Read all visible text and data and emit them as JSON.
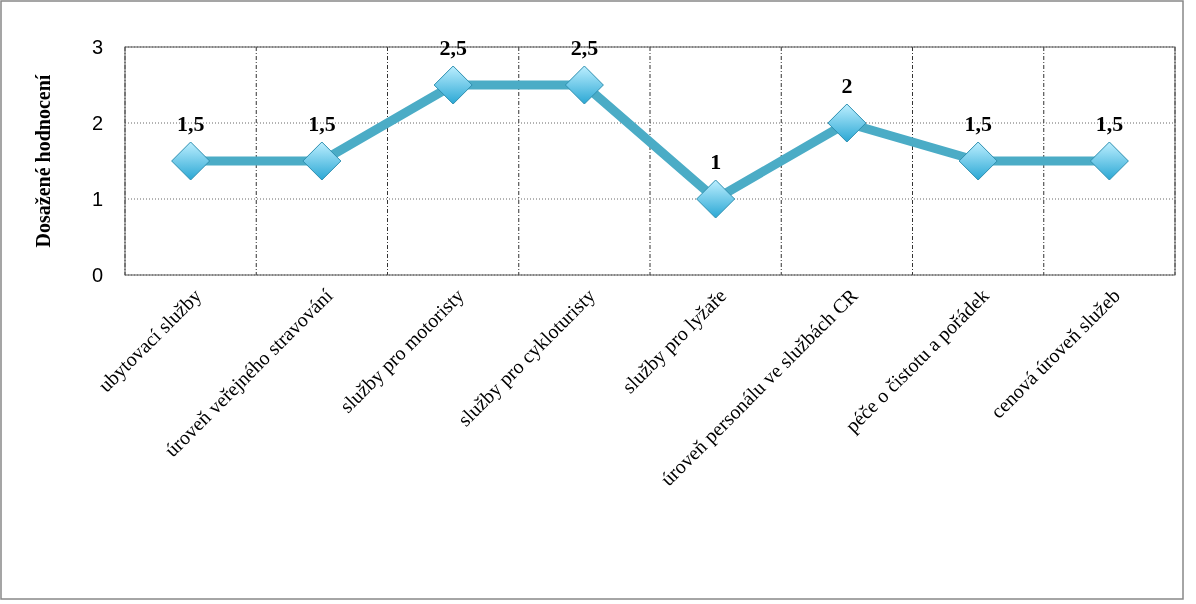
{
  "chart_data": {
    "type": "line",
    "ylabel": "Dosažené hodnocení",
    "categories": [
      "ubytovací  služby",
      "úroveň veřejného stravování",
      "služby pro motoristy",
      "služby pro cykloturisty",
      "služby pro lyžaře",
      "úroveň personálu ve službách CR",
      "péče o čistotu a pořádek",
      "cenová úroveň  služeb"
    ],
    "series": [
      {
        "color": "#4bacc6",
        "values": [
          1.5,
          1.5,
          2.5,
          2.5,
          1,
          2,
          1.5,
          1.5
        ],
        "value_labels": [
          "1,5",
          "1,5",
          "2,5",
          "2,5",
          "1",
          "2",
          "1,5",
          "1,5"
        ]
      }
    ],
    "ylim": [
      0,
      3
    ],
    "yticks": [
      0,
      1,
      2,
      3
    ],
    "grid": true,
    "marker": "diamond",
    "line_style": "solid"
  }
}
